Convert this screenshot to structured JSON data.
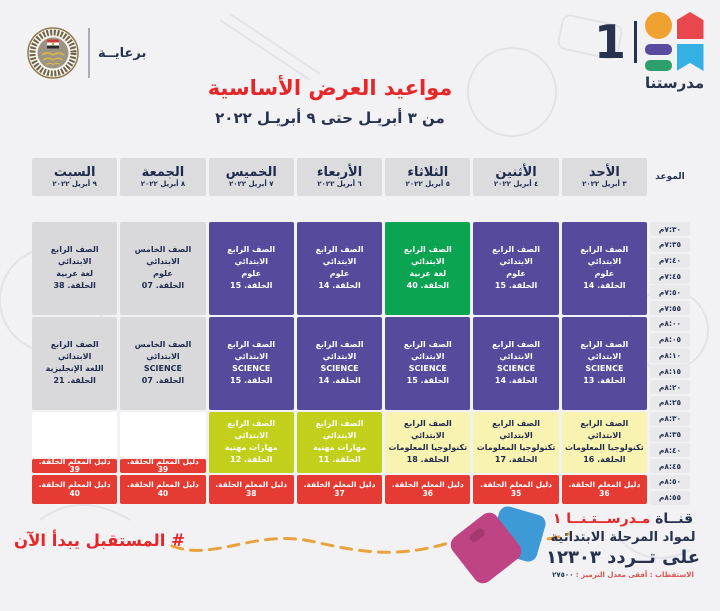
{
  "sponsor": {
    "label": "برعايــة"
  },
  "logo": {
    "number": "1",
    "name": "مدرستنا"
  },
  "title": "مواعيد العرض الأساسية",
  "subtitle": "من ٣ أبريـل حتى ٩ أبريـل ٢٠٢٢",
  "colors": {
    "purple": "#564a9c",
    "green": "#0ba551",
    "gray": "#d9d9db",
    "paleyellow": "#f9f3b2",
    "lime": "#c2d01c",
    "red": "#e53b33",
    "white": "#ffffff",
    "navy": "#1f2b4d",
    "accent_red": "#e62629",
    "dash_orange": "#e8a33e"
  },
  "table": {
    "time_header": "الموعد",
    "days": [
      {
        "name": "الأحد",
        "date": "٣ أبريل ٢٠٢٢"
      },
      {
        "name": "الأثنين",
        "date": "٤ أبريل ٢٠٢٢"
      },
      {
        "name": "الثلاثاء",
        "date": "٥ أبريل ٢٠٢٢"
      },
      {
        "name": "الأربعاء",
        "date": "٦ أبريل ٢٠٢٢"
      },
      {
        "name": "الخميس",
        "date": "٧ أبريل ٢٠٢٢"
      },
      {
        "name": "الجمعة",
        "date": "٨ أبريل ٢٠٢٢"
      },
      {
        "name": "السبت",
        "date": "٩ أبريل ٢٠٢٢"
      }
    ],
    "times": [
      "٧:٣٠م",
      "٧:٣٥م",
      "٧:٤٠م",
      "٧:٤٥م",
      "٧:٥٠م",
      "٧:٥٥م",
      "٨:٠٠م",
      "٨:٠٥م",
      "٨:١٠م",
      "٨:١٥م",
      "٨:٢٠م",
      "٨:٢٥م",
      "٨:٣٠م",
      "٨:٣٥م",
      "٨:٤٠م",
      "٨:٤٥م",
      "٨:٥٠م",
      "٨:٥٥م"
    ],
    "cells": [
      {
        "day": 0,
        "row": 0,
        "span": 6,
        "color": "purple",
        "lines": [
          "الصف الرابع الابتدائي",
          "علوم",
          "الحلقة. 14"
        ]
      },
      {
        "day": 1,
        "row": 0,
        "span": 6,
        "color": "purple",
        "lines": [
          "الصف الرابع الابتدائي",
          "علوم",
          "الحلقة. 15"
        ]
      },
      {
        "day": 2,
        "row": 0,
        "span": 6,
        "color": "green",
        "lines": [
          "الصف الرابع الابتدائي",
          "لغة عربية",
          "الحلقة. 40"
        ]
      },
      {
        "day": 3,
        "row": 0,
        "span": 6,
        "color": "purple",
        "lines": [
          "الصف الرابع الابتدائي",
          "علوم",
          "الحلقة. 14"
        ]
      },
      {
        "day": 4,
        "row": 0,
        "span": 6,
        "color": "purple",
        "lines": [
          "الصف الرابع الابتدائي",
          "علوم",
          "الحلقة. 15"
        ]
      },
      {
        "day": 5,
        "row": 0,
        "span": 6,
        "color": "gray",
        "lines": [
          "الصف الخامس الابتدائي",
          "علوم",
          "الحلقة. 07"
        ]
      },
      {
        "day": 6,
        "row": 0,
        "span": 6,
        "color": "gray",
        "lines": [
          "الصف الرابع الابتدائي",
          "لغة عربية",
          "الحلقة. 38"
        ]
      },
      {
        "day": 0,
        "row": 6,
        "span": 6,
        "color": "purple",
        "lines": [
          "الصف الرابع الابتدائي",
          "SCIENCE",
          "الحلقة. 13"
        ]
      },
      {
        "day": 1,
        "row": 6,
        "span": 6,
        "color": "purple",
        "lines": [
          "الصف الرابع الابتدائي",
          "SCIENCE",
          "الحلقة. 14"
        ]
      },
      {
        "day": 2,
        "row": 6,
        "span": 6,
        "color": "purple",
        "lines": [
          "الصف الرابع الابتدائي",
          "SCIENCE",
          "الحلقة. 15"
        ]
      },
      {
        "day": 3,
        "row": 6,
        "span": 6,
        "color": "purple",
        "lines": [
          "الصف الرابع الابتدائي",
          "SCIENCE",
          "الحلقة. 14"
        ]
      },
      {
        "day": 4,
        "row": 6,
        "span": 6,
        "color": "purple",
        "lines": [
          "الصف الرابع الابتدائي",
          "SCIENCE",
          "الحلقة. 15"
        ]
      },
      {
        "day": 5,
        "row": 6,
        "span": 6,
        "color": "gray",
        "lines": [
          "الصف الخامس الابتدائي",
          "SCIENCE",
          "الحلقة. 07"
        ]
      },
      {
        "day": 6,
        "row": 6,
        "span": 6,
        "color": "gray",
        "lines": [
          "الصف الرابع الابتدائي",
          "اللغة الإنجليزية",
          "الحلقة. 21"
        ]
      },
      {
        "day": 0,
        "row": 12,
        "span": 4,
        "color": "paleyellow",
        "lines": [
          "الصف الرابع الابتدائي",
          "تكنولوجيا المعلومات",
          "الحلقة. 16"
        ]
      },
      {
        "day": 1,
        "row": 12,
        "span": 4,
        "color": "paleyellow",
        "lines": [
          "الصف الرابع الابتدائي",
          "تكنولوجيا المعلومات",
          "الحلقة. 17"
        ]
      },
      {
        "day": 2,
        "row": 12,
        "span": 4,
        "color": "paleyellow",
        "lines": [
          "الصف الرابع الابتدائي",
          "تكنولوجيا المعلومات",
          "الحلقة. 18"
        ]
      },
      {
        "day": 3,
        "row": 12,
        "span": 4,
        "color": "lime",
        "lines": [
          "الصف الرابع الابتدائي",
          "مهارات مهنية",
          "الحلقة. 11"
        ]
      },
      {
        "day": 4,
        "row": 12,
        "span": 4,
        "color": "lime",
        "lines": [
          "الصف الرابع الابتدائي",
          "مهارات مهنية",
          "الحلقة. 12"
        ]
      },
      {
        "day": 5,
        "row": 12,
        "span": 3,
        "color": "white",
        "lines": []
      },
      {
        "day": 6,
        "row": 12,
        "span": 3,
        "color": "white",
        "lines": []
      },
      {
        "day": 5,
        "row": 15,
        "span": 1,
        "color": "red",
        "lines": [
          "دليل المعلم الحلقة. 39"
        ]
      },
      {
        "day": 6,
        "row": 15,
        "span": 1,
        "color": "red",
        "lines": [
          "دليل المعلم الحلقة. 39"
        ]
      },
      {
        "day": 0,
        "row": 16,
        "span": 2,
        "color": "red",
        "lines": [
          "دليل المعلم الحلقة. 36"
        ]
      },
      {
        "day": 1,
        "row": 16,
        "span": 2,
        "color": "red",
        "lines": [
          "دليل المعلم الحلقة. 35"
        ]
      },
      {
        "day": 2,
        "row": 16,
        "span": 2,
        "color": "red",
        "lines": [
          "دليل المعلم الحلقة. 36"
        ]
      },
      {
        "day": 3,
        "row": 16,
        "span": 2,
        "color": "red",
        "lines": [
          "دليل المعلم الحلقة. 37"
        ]
      },
      {
        "day": 4,
        "row": 16,
        "span": 2,
        "color": "red",
        "lines": [
          "دليل المعلم الحلقة. 38"
        ]
      },
      {
        "day": 5,
        "row": 16,
        "span": 2,
        "color": "red",
        "lines": [
          "دليل المعلم الحلقة. 40"
        ]
      },
      {
        "day": 6,
        "row": 16,
        "span": 2,
        "color": "red",
        "lines": [
          "دليل المعلم الحلقة. 40"
        ]
      }
    ]
  },
  "footer": {
    "hashtag": "# المستقبل يبدأ الآن",
    "channel_prefix": "قنــاة",
    "channel_name": "مـدرســتـنــا ١",
    "line2": "لمواد المرحلة الابتدائية",
    "line3": "على تــردد ١٢٣٠٣",
    "specs_label": "الاستقطاب : أفقى   معدل الترميز :",
    "specs_value": "٢٧٥٠٠"
  }
}
